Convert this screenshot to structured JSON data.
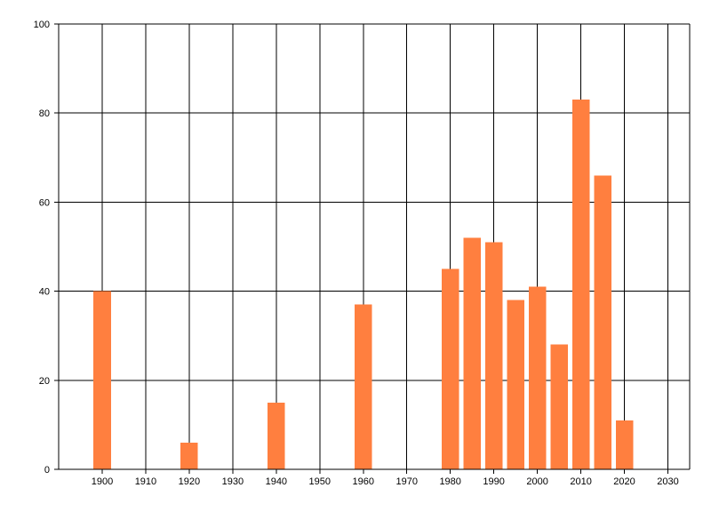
{
  "chart_data": {
    "type": "bar",
    "title": "",
    "xlabel": "",
    "ylabel": "",
    "x_ticks": [
      "1900",
      "1910",
      "1920",
      "1930",
      "1940",
      "1950",
      "1960",
      "1970",
      "1980",
      "1990",
      "2000",
      "2010",
      "2020",
      "2030"
    ],
    "y_ticks": [
      "0",
      "20",
      "40",
      "60",
      "80",
      "100"
    ],
    "xlim": [
      1890,
      2035
    ],
    "ylim": [
      0,
      100
    ],
    "x_tick_step": 10,
    "y_tick_step": 20,
    "grid": true,
    "legend": "none",
    "bar_width_years": 4,
    "colors": {
      "bar": "#ff7f3f",
      "grid": "#000000",
      "axis": "#000000",
      "background": "#ffffff"
    },
    "series": [
      {
        "points": [
          {
            "x": 1900,
            "y": 40
          },
          {
            "x": 1920,
            "y": 6
          },
          {
            "x": 1940,
            "y": 15
          },
          {
            "x": 1960,
            "y": 37
          },
          {
            "x": 1980,
            "y": 45
          },
          {
            "x": 1985,
            "y": 52
          },
          {
            "x": 1990,
            "y": 51
          },
          {
            "x": 1995,
            "y": 38
          },
          {
            "x": 2000,
            "y": 41
          },
          {
            "x": 2005,
            "y": 28
          },
          {
            "x": 2010,
            "y": 83
          },
          {
            "x": 2015,
            "y": 66
          },
          {
            "x": 2020,
            "y": 11
          }
        ]
      }
    ]
  }
}
